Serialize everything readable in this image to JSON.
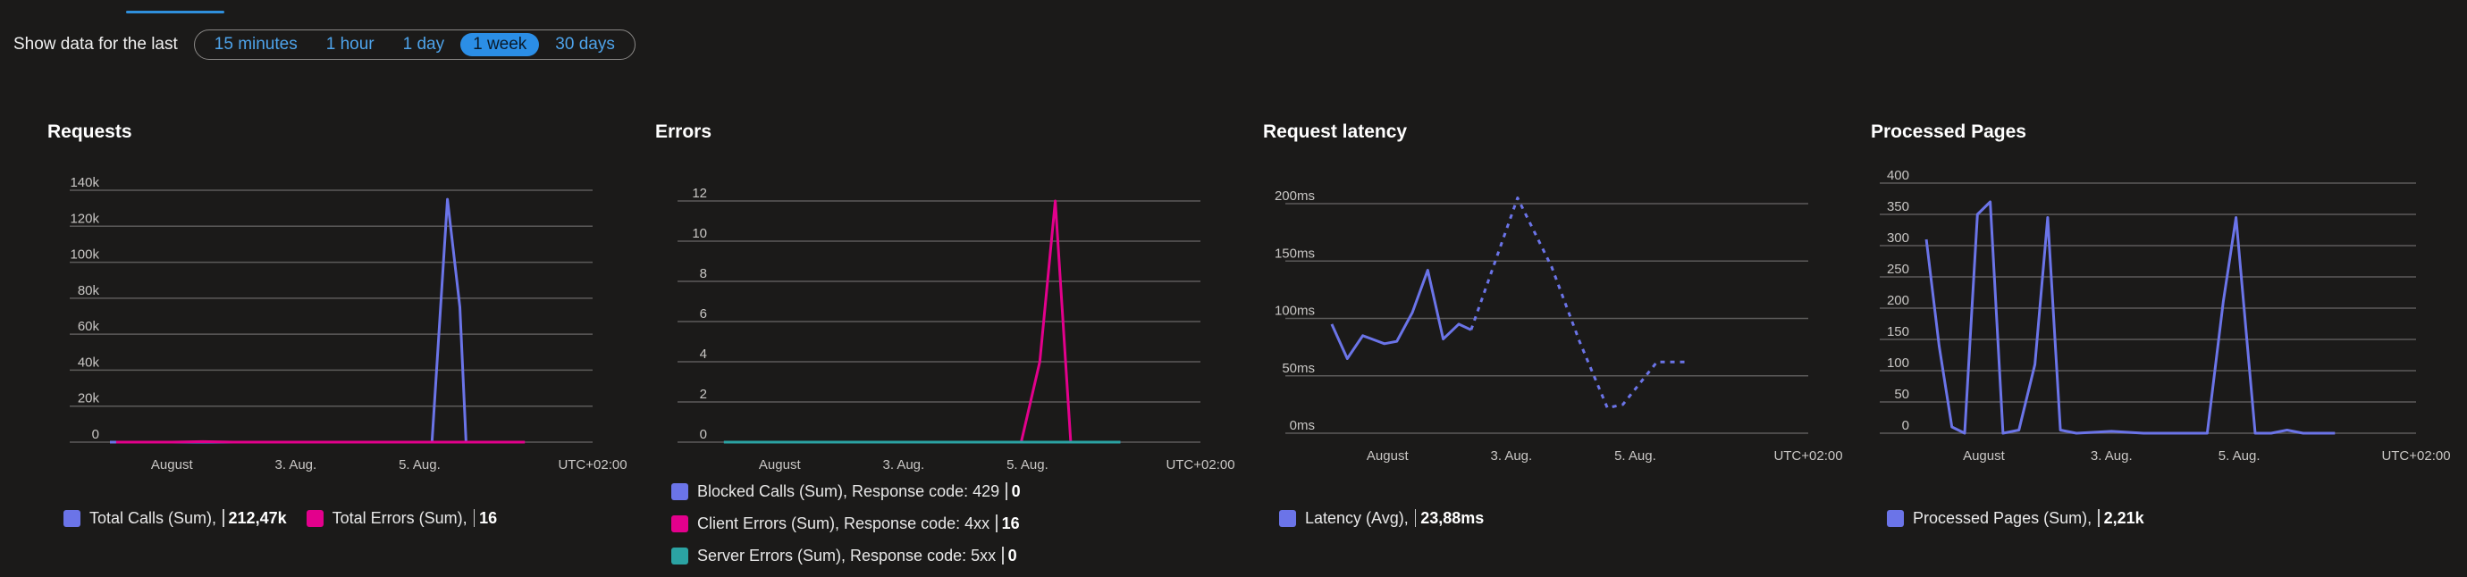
{
  "time_range": {
    "label": "Show data for the last",
    "options": [
      "15 minutes",
      "1 hour",
      "1 day",
      "1 week",
      "30 days"
    ],
    "selected": "1 week"
  },
  "colors": {
    "blue": "#6b74e8",
    "magenta": "#e3008c",
    "teal": "#2ba3a3",
    "accent": "#2b8ee6"
  },
  "panels": [
    {
      "title": "Requests",
      "legend": [
        {
          "label": "Total Calls (Sum),",
          "value": "212,47k",
          "color": "#6b74e8"
        },
        {
          "label": "Total Errors (Sum),",
          "value": "16",
          "color": "#e3008c"
        }
      ]
    },
    {
      "title": "Errors",
      "legend": [
        {
          "label": "Blocked Calls (Sum), Response code: 429",
          "value": "0",
          "color": "#6b74e8"
        },
        {
          "label": "Client Errors (Sum), Response code: 4xx",
          "value": "16",
          "color": "#e3008c"
        },
        {
          "label": "Server Errors (Sum), Response code: 5xx",
          "value": "0",
          "color": "#2ba3a3"
        }
      ]
    },
    {
      "title": "Request latency",
      "legend": [
        {
          "label": "Latency (Avg),",
          "value": "23,88ms",
          "color": "#6b74e8"
        }
      ]
    },
    {
      "title": "Processed Pages",
      "legend": [
        {
          "label": "Processed Pages (Sum),",
          "value": "2,21k",
          "color": "#6b74e8"
        }
      ]
    }
  ],
  "chart_data": [
    {
      "type": "line",
      "ytick_labels": [
        "0",
        "20k",
        "40k",
        "60k",
        "80k",
        "100k",
        "120k",
        "140k"
      ],
      "ylim": [
        0,
        140000
      ],
      "xtick_labels": [
        "August",
        "3. Aug.",
        "5. Aug."
      ],
      "xtick_pos": [
        1,
        3,
        5
      ],
      "timezone": "UTC+02:00",
      "xlim": [
        0,
        7
      ],
      "series": [
        {
          "name": "Total Calls (Sum)",
          "color": "#6b74e8",
          "points": [
            [
              0,
              0
            ],
            [
              1,
              0
            ],
            [
              2,
              0
            ],
            [
              3,
              0
            ],
            [
              4,
              0
            ],
            [
              5,
              0
            ],
            [
              5.2,
              0
            ],
            [
              5.45,
              135000
            ],
            [
              5.65,
              75000
            ],
            [
              5.75,
              0
            ],
            [
              6.5,
              0
            ]
          ]
        },
        {
          "name": "Total Errors (Sum)",
          "color": "#e3008c",
          "points": [
            [
              0.1,
              0
            ],
            [
              1,
              0
            ],
            [
              1.5,
              300
            ],
            [
              2,
              0
            ],
            [
              3,
              0
            ],
            [
              4,
              0
            ],
            [
              5,
              0
            ],
            [
              6,
              0
            ],
            [
              6.7,
              0
            ]
          ]
        }
      ]
    },
    {
      "type": "line",
      "ytick_labels": [
        "0",
        "2",
        "4",
        "6",
        "8",
        "10",
        "12"
      ],
      "ylim": [
        0,
        12
      ],
      "xtick_labels": [
        "August",
        "3. Aug.",
        "5. Aug."
      ],
      "xtick_pos": [
        1,
        3,
        5
      ],
      "timezone": "UTC+02:00",
      "xlim": [
        0,
        7
      ],
      "series": [
        {
          "name": "Blocked Calls (Sum), Response code: 429",
          "color": "#6b74e8",
          "points": [
            [
              0.1,
              0
            ],
            [
              6.5,
              0
            ]
          ]
        },
        {
          "name": "Client Errors (Sum), Response code: 4xx",
          "color": "#e3008c",
          "points": [
            [
              4.9,
              0
            ],
            [
              5.2,
              4
            ],
            [
              5.45,
              12
            ],
            [
              5.7,
              0
            ]
          ]
        },
        {
          "name": "Server Errors (Sum), Response code: 5xx",
          "color": "#2ba3a3",
          "points": [
            [
              0.1,
              0
            ],
            [
              6.5,
              0
            ]
          ]
        }
      ]
    },
    {
      "type": "line",
      "ytick_labels": [
        "0ms",
        "50ms",
        "100ms",
        "150ms",
        "200ms"
      ],
      "ylim": [
        0,
        200
      ],
      "xtick_labels": [
        "August",
        "3. Aug.",
        "5. Aug."
      ],
      "xtick_pos": [
        1,
        3,
        5
      ],
      "timezone": "UTC+02:00",
      "xlim": [
        0,
        7
      ],
      "series": [
        {
          "name": "Latency (Avg)",
          "color": "#6b74e8",
          "solid": [
            [
              0.1,
              95
            ],
            [
              0.35,
              65
            ],
            [
              0.6,
              85
            ],
            [
              0.75,
              82
            ],
            [
              0.95,
              78
            ],
            [
              1.15,
              80
            ],
            [
              1.4,
              105
            ],
            [
              1.65,
              142
            ],
            [
              1.9,
              82
            ],
            [
              2.15,
              95
            ],
            [
              2.35,
              90
            ]
          ],
          "dashed": [
            [
              2.35,
              90
            ],
            [
              3.1,
              205
            ],
            [
              3.65,
              145
            ],
            [
              4.1,
              80
            ],
            [
              4.55,
              22
            ],
            [
              4.8,
              25
            ],
            [
              5.35,
              62
            ],
            [
              5.8,
              62
            ]
          ]
        }
      ]
    },
    {
      "type": "line",
      "ytick_labels": [
        "0",
        "50",
        "100",
        "150",
        "200",
        "250",
        "300",
        "350",
        "400"
      ],
      "ylim": [
        0,
        400
      ],
      "xtick_labels": [
        "August",
        "3. Aug.",
        "5. Aug."
      ],
      "xtick_pos": [
        1,
        3,
        5
      ],
      "timezone": "UTC+02:00",
      "xlim": [
        0,
        7
      ],
      "series": [
        {
          "name": "Processed Pages (Sum)",
          "color": "#6b74e8",
          "points": [
            [
              0.1,
              310
            ],
            [
              0.3,
              140
            ],
            [
              0.5,
              10
            ],
            [
              0.7,
              0
            ],
            [
              0.9,
              350
            ],
            [
              1.1,
              370
            ],
            [
              1.3,
              0
            ],
            [
              1.55,
              5
            ],
            [
              1.8,
              110
            ],
            [
              2.0,
              345
            ],
            [
              2.2,
              5
            ],
            [
              2.45,
              0
            ],
            [
              3.0,
              3
            ],
            [
              3.5,
              0
            ],
            [
              4.0,
              0
            ],
            [
              4.5,
              0
            ],
            [
              4.75,
              210
            ],
            [
              4.95,
              345
            ],
            [
              5.25,
              0
            ],
            [
              5.5,
              0
            ],
            [
              5.75,
              5
            ],
            [
              6.0,
              0
            ],
            [
              6.5,
              0
            ]
          ]
        }
      ]
    }
  ]
}
